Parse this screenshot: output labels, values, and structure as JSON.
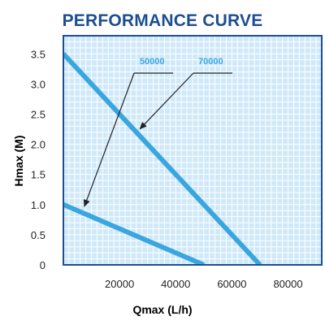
{
  "chart_data": {
    "type": "line",
    "title": "PERFORMANCE CURVE",
    "xlabel": "Qmax (L/h)",
    "ylabel": "Hmax (M)",
    "xlim": [
      0,
      92000
    ],
    "ylim": [
      0,
      3.8
    ],
    "x_ticks": [
      20000,
      40000,
      60000,
      80000
    ],
    "y_ticks": [
      0,
      0.5,
      1.0,
      1.5,
      2.0,
      2.5,
      3.0,
      3.5
    ],
    "x_tick_labels": [
      "20000",
      "40000",
      "60000",
      "80000"
    ],
    "y_tick_labels": [
      "0",
      "0.5",
      "1.0",
      "1.5",
      "2.0",
      "2.5",
      "3.0",
      "3.5"
    ],
    "grid": true,
    "series": [
      {
        "name": "50000",
        "x": [
          0,
          50000
        ],
        "y": [
          1.0,
          0
        ]
      },
      {
        "name": "70000",
        "x": [
          0,
          70000
        ],
        "y": [
          3.5,
          0
        ]
      }
    ]
  },
  "colors": {
    "title": "#1d4e8f",
    "plot_bg": "#cfe9fa",
    "grid": "#ffffff",
    "line": "#3aa6df",
    "legend_text": "#3aa6df",
    "frame": "#1d4e8f",
    "arrow": "#222222"
  }
}
